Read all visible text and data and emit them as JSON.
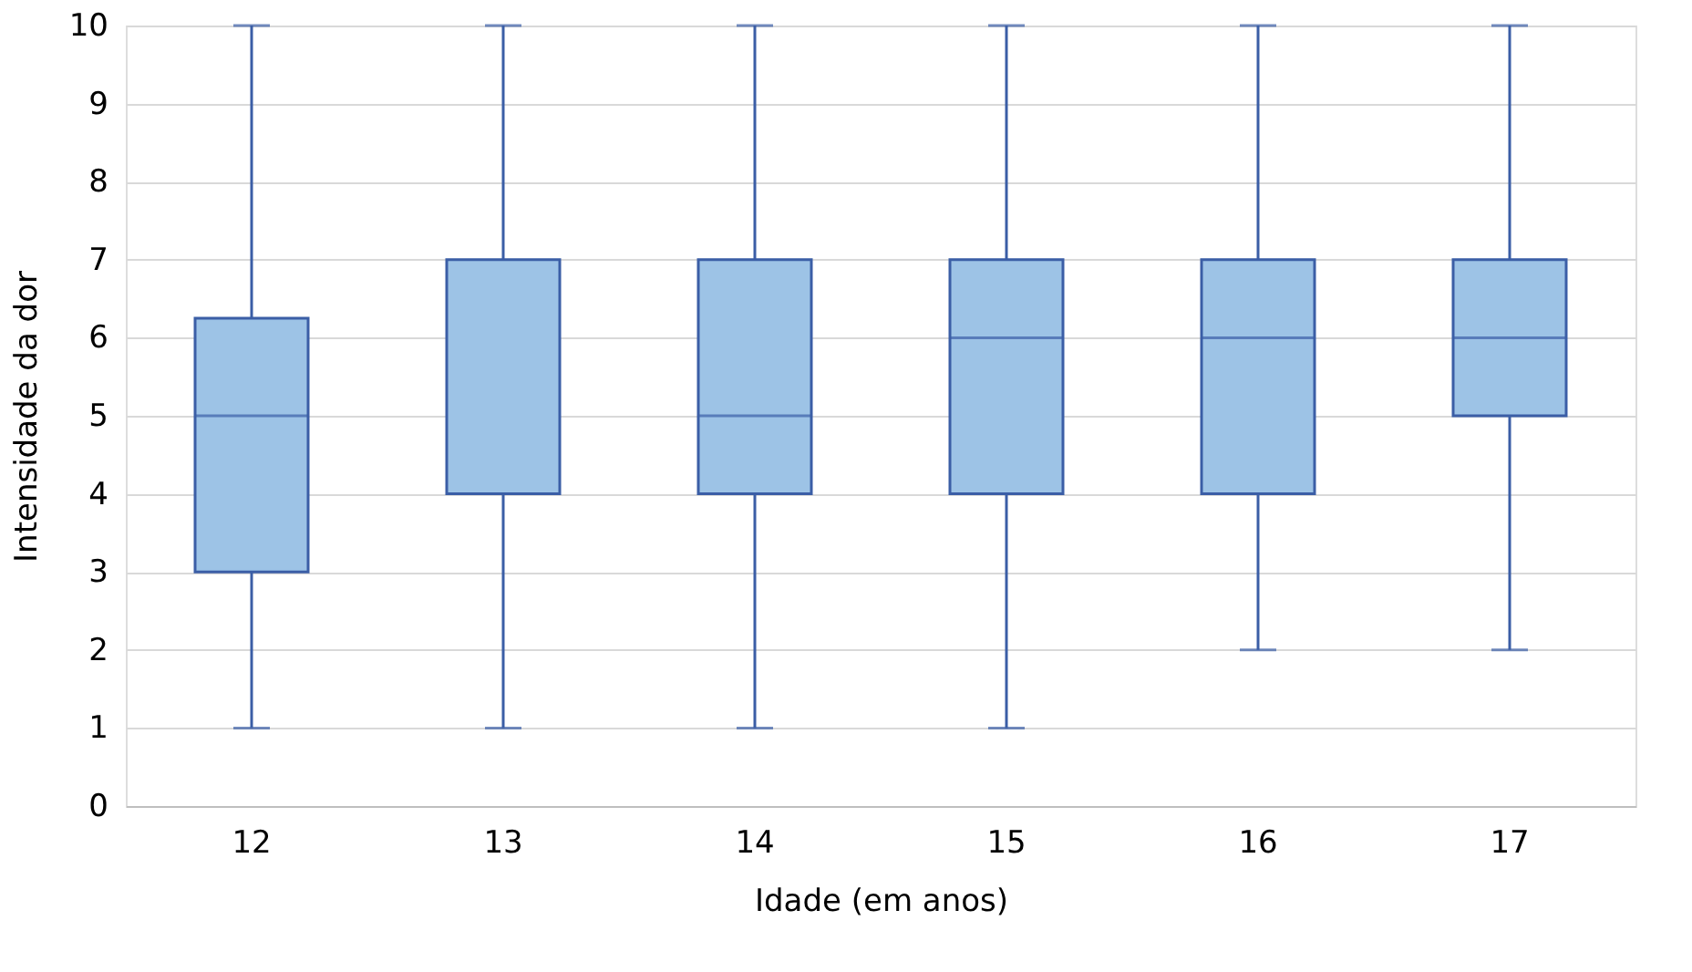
{
  "chart_data": {
    "type": "box",
    "xlabel": "Idade (em anos)",
    "ylabel": "Intensidade da dor",
    "categories": [
      "12",
      "13",
      "14",
      "15",
      "16",
      "17"
    ],
    "color": "#9dc3e6",
    "ylim": [
      0,
      10
    ],
    "yticks": [
      0,
      1,
      2,
      3,
      4,
      5,
      6,
      7,
      8,
      9,
      10
    ],
    "grid": "y",
    "boxes": [
      {
        "low": 1,
        "q1": 3,
        "median": 5,
        "q3": 6.25,
        "high": 10
      },
      {
        "low": 1,
        "q1": 4,
        "median": 4,
        "q3": 7,
        "high": 10
      },
      {
        "low": 1,
        "q1": 4,
        "median": 5,
        "q3": 7,
        "high": 10
      },
      {
        "low": 1,
        "q1": 4,
        "median": 6,
        "q3": 7,
        "high": 10
      },
      {
        "low": 2,
        "q1": 4,
        "median": 6,
        "q3": 7,
        "high": 10
      },
      {
        "low": 2,
        "q1": 5,
        "median": 6,
        "q3": 7,
        "high": 10
      }
    ]
  }
}
